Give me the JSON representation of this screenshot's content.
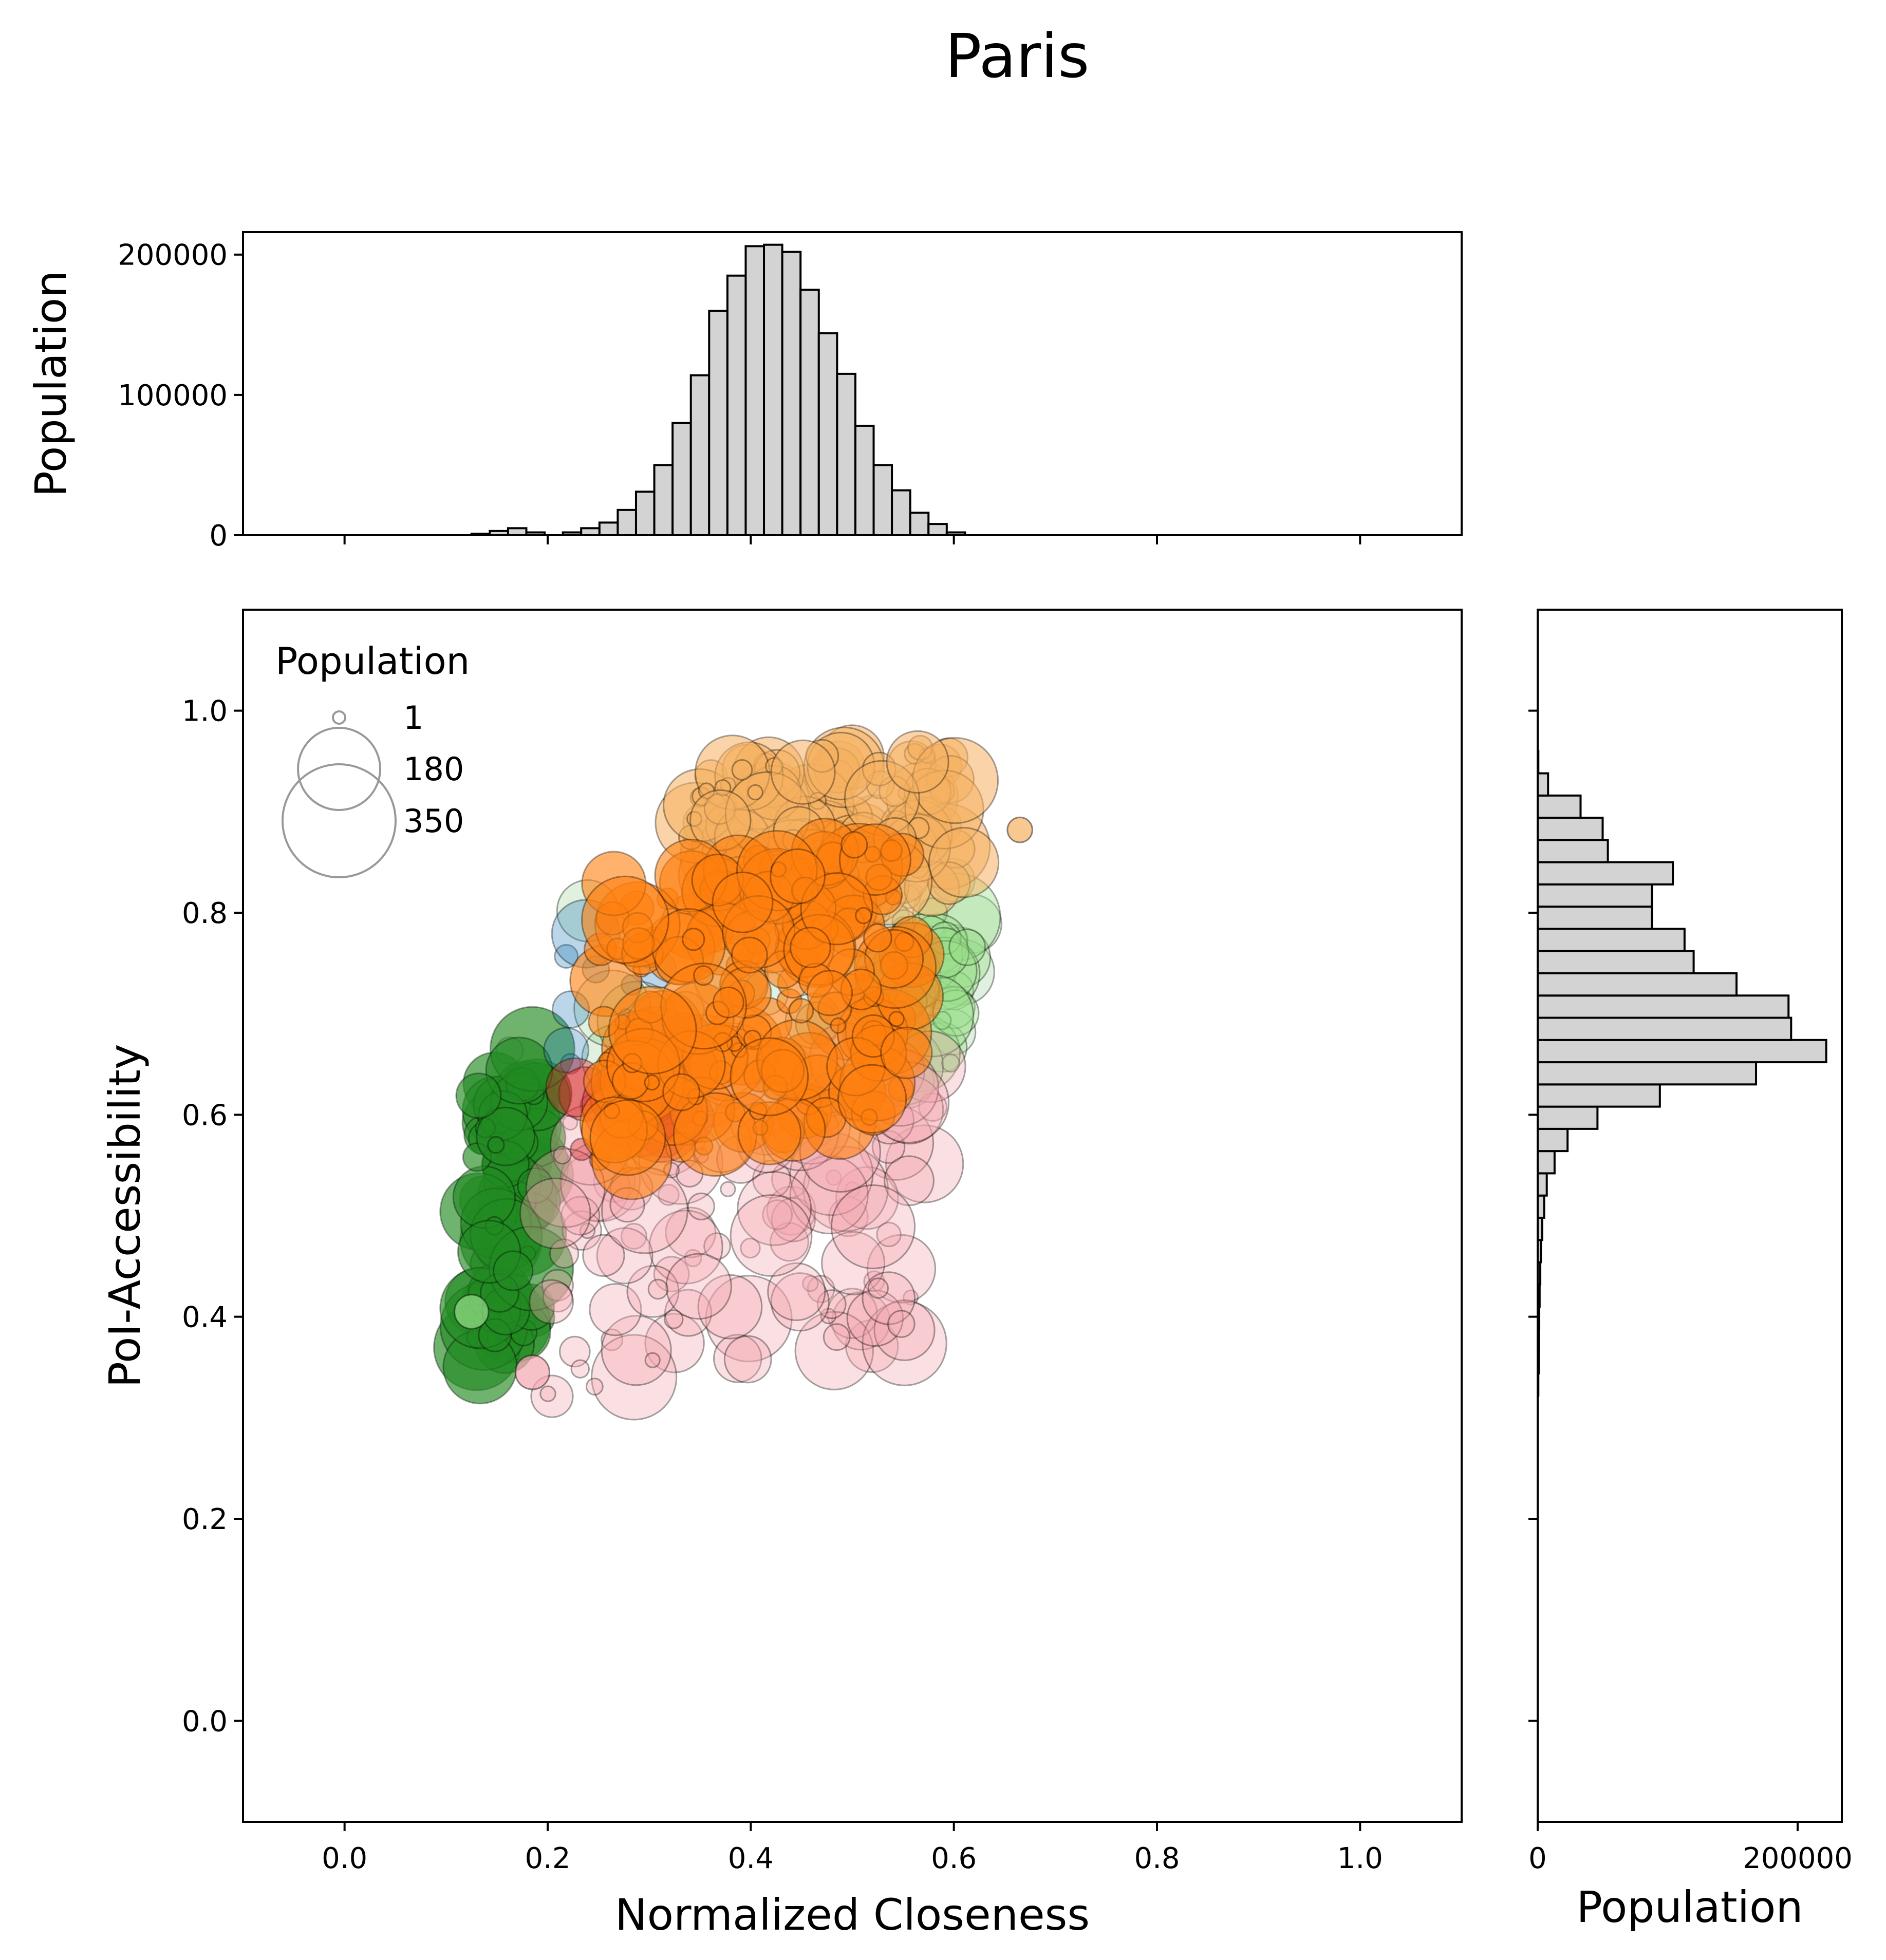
{
  "chart_data": {
    "title": "Paris",
    "type": "scatter",
    "scatter": {
      "xlabel": "Normalized Closeness",
      "ylabel": "PoI-Accessibility",
      "xlim": [
        -0.1,
        1.1
      ],
      "ylim": [
        -0.1,
        1.1
      ],
      "xticks": [
        "0.0",
        "0.2",
        "0.4",
        "0.6",
        "0.8",
        "1.0"
      ],
      "yticks": [
        "0.0",
        "0.2",
        "0.4",
        "0.6",
        "0.8",
        "1.0"
      ],
      "legend": {
        "title": "Population",
        "placement": "top-left",
        "entries": [
          {
            "label": "1",
            "population": 1
          },
          {
            "label": "180",
            "population": 180
          },
          {
            "label": "350",
            "population": 350
          }
        ]
      },
      "clusters": [
        {
          "color": "#2ca02c",
          "alpha": 0.15,
          "x_range": [
            0.16,
            0.62
          ],
          "y_range": [
            0.6,
            0.86
          ],
          "count": 30
        },
        {
          "color": "#98df8a",
          "alpha": 0.4,
          "x_range": [
            0.52,
            0.62
          ],
          "y_range": [
            0.62,
            0.84
          ],
          "count": 40
        },
        {
          "color": "#228b22",
          "alpha": 0.65,
          "x_range": [
            0.13,
            0.19
          ],
          "y_range": [
            0.34,
            0.68
          ],
          "count": 90
        },
        {
          "color": "#f4a6b0",
          "alpha": 0.35,
          "x_range": [
            0.2,
            0.58
          ],
          "y_range": [
            0.32,
            0.68
          ],
          "count": 130
        },
        {
          "color": "#1f77b4",
          "alpha": 0.3,
          "x_range": [
            0.21,
            0.32
          ],
          "y_range": [
            0.62,
            0.8
          ],
          "count": 10
        },
        {
          "color": "#d62728",
          "alpha": 0.4,
          "x_range": [
            0.22,
            0.34
          ],
          "y_range": [
            0.56,
            0.68
          ],
          "count": 22
        },
        {
          "color": "#f5b061",
          "alpha": 0.55,
          "x_range": [
            0.34,
            0.61
          ],
          "y_range": [
            0.8,
            0.97
          ],
          "count": 140
        },
        {
          "color": "#ff7f0e",
          "alpha": 0.6,
          "x_range": [
            0.25,
            0.56
          ],
          "y_range": [
            0.55,
            0.88
          ],
          "count": 190
        }
      ],
      "outliers": [
        {
          "x": 0.665,
          "y": 0.882,
          "color": "#f5b061",
          "population": 15
        },
        {
          "x": 0.185,
          "y": 0.345,
          "color": "#f4a6b0",
          "population": 30
        },
        {
          "x": 0.125,
          "y": 0.405,
          "color": "#98df8a",
          "population": 30
        }
      ]
    },
    "top_histogram": {
      "ylabel": "Population",
      "xlim": [
        -0.1,
        1.1
      ],
      "ylim": [
        0,
        216000
      ],
      "yticks": [
        "0",
        "100000",
        "200000"
      ],
      "bin_width": 0.018,
      "bins_start": [
        0.125,
        0.143,
        0.161,
        0.179,
        0.197,
        0.215,
        0.233,
        0.251,
        0.269,
        0.287,
        0.305,
        0.323,
        0.341,
        0.359,
        0.377,
        0.395,
        0.413,
        0.431,
        0.449,
        0.467,
        0.485,
        0.503,
        0.521,
        0.539,
        0.557,
        0.575,
        0.593
      ],
      "values": [
        1000,
        3000,
        5000,
        2000,
        0,
        2000,
        5000,
        9000,
        18000,
        31000,
        50000,
        80000,
        114000,
        160000,
        185000,
        206000,
        207000,
        202000,
        175000,
        144000,
        115000,
        78000,
        50000,
        32000,
        16000,
        8000,
        2000
      ]
    },
    "right_histogram": {
      "xlabel": "Population",
      "xlim": [
        0,
        234000
      ],
      "ylim": [
        -0.1,
        1.1
      ],
      "xticks": [
        "0",
        "200000"
      ],
      "bin_width": 0.022,
      "bins_start": [
        0.322,
        0.344,
        0.366,
        0.388,
        0.41,
        0.432,
        0.454,
        0.476,
        0.498,
        0.52,
        0.542,
        0.564,
        0.586,
        0.608,
        0.63,
        0.652,
        0.674,
        0.696,
        0.718,
        0.74,
        0.762,
        0.784,
        0.806,
        0.828,
        0.85,
        0.872,
        0.894,
        0.916,
        0.938
      ],
      "values": [
        500,
        800,
        1000,
        1200,
        1500,
        2000,
        2500,
        3500,
        5000,
        7000,
        13000,
        23000,
        46000,
        94000,
        168000,
        222000,
        195000,
        193000,
        153000,
        120000,
        113000,
        88000,
        88000,
        104000,
        54000,
        50000,
        33000,
        8000,
        500
      ]
    }
  }
}
